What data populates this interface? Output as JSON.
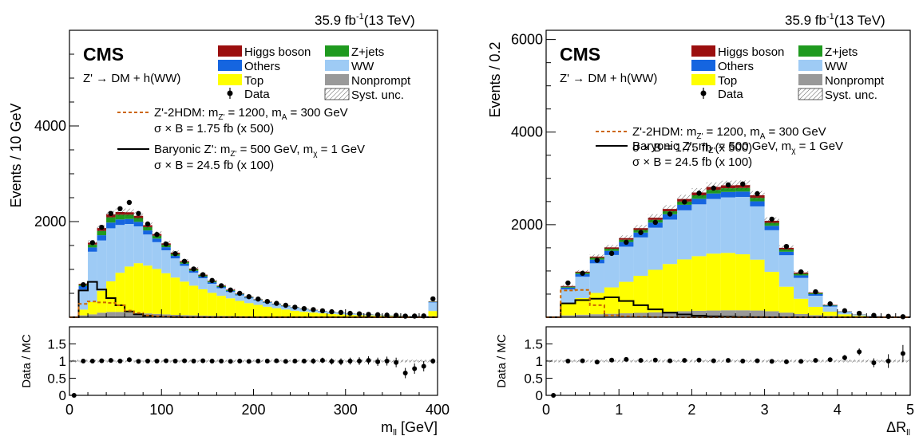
{
  "figure": {
    "cms_label": "CMS",
    "lumi": "35.9 fb",
    "lumi_sup": "-1",
    "energy": "(13 TeV)",
    "process": "Z' → DM + h(WW)",
    "colors": {
      "higgs": "#9b0f0f",
      "zjets": "#1f9a1f",
      "others": "#1565e0",
      "ww": "#9ecbf5",
      "top": "#ffff00",
      "nonprompt": "#999999",
      "zp2hdm": "#cc6600",
      "baryonic": "#000000"
    },
    "legend": {
      "higgs": "Higgs boson",
      "zjets": "Z+jets",
      "others": "Others",
      "ww": "WW",
      "top": "Top",
      "nonprompt": "Nonprompt",
      "data": "Data",
      "syst": "Syst. unc.",
      "sig1_line1_a": "Z'-2HDM: m",
      "sig1_sub1": "Z'",
      "sig1_line1_b": " = 1200, m",
      "sig1_sub2": "A",
      "sig1_line1_c": " = 300 GeV",
      "sig1_line2": "σ × B = 1.75 fb (x 500)",
      "sig2_line1_a": "Baryonic Z': m",
      "sig2_sub1": "Z'",
      "sig2_line1_b": " = 500 GeV, m",
      "sig2_sub2": "χ",
      "sig2_line1_c": " = 1 GeV",
      "sig2_line2": "σ × B = 24.5 fb (x 100)"
    }
  },
  "chart_data": [
    {
      "type": "bar",
      "stacked": true,
      "ylabel": "Events / 10 GeV",
      "xlabel": "m",
      "xlabel_sub": "ll",
      "xlabel_unit": " [GeV]",
      "ratio_ylabel": "Data / MC",
      "xlim": [
        0,
        400
      ],
      "ylim": [
        0,
        6000
      ],
      "xticks": [
        "0",
        "100",
        "200",
        "300",
        "400"
      ],
      "yticks": [
        "2000",
        "4000"
      ],
      "ratio_ylim": [
        0,
        2
      ],
      "ratio_yticks": [
        "0",
        "0.5",
        "1",
        "1.5"
      ],
      "bin_width": 10,
      "x": [
        5,
        15,
        25,
        35,
        45,
        55,
        65,
        75,
        85,
        95,
        105,
        115,
        125,
        135,
        145,
        155,
        165,
        175,
        185,
        195,
        205,
        215,
        225,
        235,
        245,
        255,
        265,
        275,
        285,
        295,
        305,
        315,
        325,
        335,
        345,
        355,
        365,
        375,
        385,
        395
      ],
      "series": [
        {
          "name": "Nonprompt",
          "values": [
            0,
            40,
            60,
            95,
            110,
            110,
            100,
            90,
            80,
            70,
            60,
            50,
            45,
            40,
            35,
            30,
            28,
            25,
            22,
            20,
            18,
            16,
            14,
            12,
            10,
            9,
            8,
            7,
            6,
            6,
            5,
            5,
            4,
            4,
            4,
            3,
            3,
            3,
            3,
            20
          ]
        },
        {
          "name": "Top",
          "values": [
            0,
            120,
            260,
            460,
            640,
            820,
            960,
            1040,
            1000,
            940,
            860,
            780,
            700,
            620,
            550,
            480,
            420,
            370,
            320,
            275,
            240,
            205,
            175,
            150,
            125,
            105,
            90,
            75,
            65,
            55,
            45,
            40,
            35,
            30,
            25,
            22,
            18,
            16,
            14,
            110
          ]
        },
        {
          "name": "WW",
          "values": [
            0,
            420,
            1050,
            1050,
            1110,
            1000,
            890,
            770,
            650,
            560,
            480,
            400,
            330,
            270,
            230,
            190,
            160,
            135,
            115,
            100,
            90,
            80,
            73,
            64,
            58,
            50,
            44,
            38,
            32,
            27,
            23,
            20,
            17,
            14,
            12,
            10,
            8,
            7,
            6,
            180
          ]
        },
        {
          "name": "Others",
          "values": [
            0,
            70,
            90,
            110,
            120,
            115,
            105,
            95,
            85,
            75,
            65,
            55,
            45,
            40,
            35,
            30,
            25,
            22,
            20,
            18,
            15,
            13,
            11,
            10,
            9,
            8,
            7,
            6,
            5,
            5,
            4,
            4,
            3,
            3,
            3,
            2,
            2,
            2,
            2,
            10
          ]
        },
        {
          "name": "Z+jets",
          "values": [
            0,
            30,
            60,
            90,
            110,
            100,
            90,
            80,
            70,
            60,
            50,
            40,
            35,
            30,
            25,
            20,
            17,
            15,
            12,
            10,
            9,
            8,
            7,
            6,
            5,
            4,
            4,
            3,
            3,
            3,
            2,
            2,
            2,
            2,
            1,
            1,
            1,
            1,
            1,
            5
          ]
        },
        {
          "name": "Higgs boson",
          "values": [
            0,
            20,
            40,
            60,
            60,
            55,
            50,
            45,
            40,
            35,
            30,
            25,
            20,
            18,
            15,
            12,
            10,
            9,
            8,
            7,
            6,
            5,
            5,
            4,
            4,
            3,
            3,
            3,
            2,
            2,
            2,
            2,
            2,
            1,
            1,
            1,
            1,
            1,
            1,
            5
          ]
        }
      ],
      "data": [
        0,
        680,
        1560,
        1880,
        2170,
        2270,
        2400,
        2170,
        1950,
        1730,
        1530,
        1330,
        1170,
        1010,
        890,
        770,
        660,
        570,
        500,
        430,
        380,
        330,
        290,
        250,
        210,
        180,
        160,
        135,
        115,
        100,
        82,
        72,
        60,
        52,
        44,
        40,
        24,
        25,
        28,
        385
      ],
      "signal_2hdm": [
        0,
        280,
        330,
        310,
        300,
        250,
        140,
        90,
        40,
        20,
        10,
        5,
        0,
        0,
        0,
        0,
        0,
        0,
        0,
        0,
        0,
        0,
        0,
        0,
        0,
        0,
        0,
        0,
        0,
        0,
        0,
        0,
        0,
        0,
        0,
        0,
        0,
        0,
        0,
        0
      ],
      "signal_baryonic": [
        0,
        560,
        740,
        580,
        400,
        250,
        120,
        60,
        30,
        15,
        8,
        4,
        0,
        0,
        0,
        0,
        0,
        0,
        0,
        0,
        0,
        0,
        0,
        0,
        0,
        0,
        0,
        0,
        0,
        0,
        0,
        0,
        0,
        0,
        0,
        0,
        0,
        0,
        0,
        0
      ],
      "ratio": [
        0,
        1.0,
        1.0,
        1.01,
        1.02,
        1.0,
        1.04,
        0.99,
        1.0,
        1.0,
        1.01,
        1.0,
        1.01,
        1.0,
        1.01,
        1.0,
        1.0,
        0.99,
        1.0,
        0.99,
        1.0,
        1.0,
        1.01,
        0.99,
        1.0,
        1.0,
        1.0,
        1.02,
        0.99,
        0.98,
        1.0,
        1.0,
        1.02,
        0.98,
        1.0,
        0.96,
        0.65,
        0.78,
        0.85,
        1.0
      ],
      "ratio_err": [
        0,
        0.04,
        0.03,
        0.03,
        0.03,
        0.03,
        0.03,
        0.03,
        0.03,
        0.03,
        0.03,
        0.03,
        0.03,
        0.03,
        0.03,
        0.04,
        0.04,
        0.04,
        0.05,
        0.05,
        0.05,
        0.05,
        0.06,
        0.06,
        0.07,
        0.07,
        0.08,
        0.08,
        0.09,
        0.1,
        0.1,
        0.11,
        0.12,
        0.12,
        0.13,
        0.14,
        0.15,
        0.15,
        0.15,
        0.08
      ]
    },
    {
      "type": "bar",
      "stacked": true,
      "ylabel": "Events / 0.2",
      "xlabel": "ΔR",
      "xlabel_sub": "ll",
      "xlabel_unit": "",
      "ratio_ylabel": "Data / MC",
      "xlim": [
        0,
        5
      ],
      "ylim": [
        0,
        6200
      ],
      "xticks": [
        "0",
        "1",
        "2",
        "3",
        "4",
        "5"
      ],
      "yticks": [
        "2000",
        "4000",
        "6000"
      ],
      "ratio_ylim": [
        0,
        2
      ],
      "ratio_yticks": [
        "0",
        "0.5",
        "1",
        "1.5"
      ],
      "bin_width": 0.2,
      "x": [
        0.1,
        0.3,
        0.5,
        0.7,
        0.9,
        1.1,
        1.3,
        1.5,
        1.7,
        1.9,
        2.1,
        2.3,
        2.5,
        2.7,
        2.9,
        3.1,
        3.3,
        3.5,
        3.7,
        3.9,
        4.1,
        4.3,
        4.5,
        4.7,
        4.9
      ],
      "series": [
        {
          "name": "Nonprompt",
          "values": [
            0,
            40,
            55,
            65,
            75,
            85,
            95,
            105,
            120,
            130,
            140,
            145,
            150,
            150,
            145,
            130,
            100,
            70,
            45,
            30,
            18,
            10,
            6,
            3,
            2
          ]
        },
        {
          "name": "Top",
          "values": [
            0,
            260,
            360,
            460,
            570,
            680,
            800,
            920,
            1030,
            1120,
            1180,
            1230,
            1240,
            1210,
            1100,
            850,
            560,
            330,
            180,
            90,
            45,
            22,
            10,
            5,
            3
          ]
        },
        {
          "name": "WW",
          "values": [
            0,
            300,
            460,
            640,
            700,
            760,
            830,
            910,
            960,
            1060,
            1120,
            1180,
            1200,
            1240,
            1150,
            900,
            680,
            450,
            240,
            110,
            45,
            20,
            8,
            4,
            2
          ]
        },
        {
          "name": "Others",
          "values": [
            0,
            40,
            60,
            80,
            90,
            100,
            105,
            110,
            115,
            120,
            120,
            120,
            118,
            115,
            110,
            95,
            75,
            55,
            35,
            20,
            10,
            5,
            3,
            2,
            1
          ]
        },
        {
          "name": "Z+jets",
          "values": [
            0,
            20,
            30,
            40,
            45,
            50,
            55,
            60,
            65,
            70,
            75,
            78,
            80,
            80,
            75,
            65,
            50,
            35,
            20,
            10,
            5,
            2,
            1,
            1,
            0
          ]
        },
        {
          "name": "Higgs boson",
          "values": [
            0,
            15,
            20,
            25,
            30,
            35,
            40,
            45,
            50,
            55,
            60,
            62,
            62,
            60,
            55,
            45,
            35,
            25,
            15,
            8,
            4,
            2,
            1,
            1,
            0
          ]
        }
      ],
      "data": [
        0,
        740,
        950,
        1230,
        1380,
        1620,
        1830,
        2050,
        2230,
        2490,
        2680,
        2790,
        2860,
        2880,
        2670,
        2120,
        1530,
        980,
        550,
        290,
        140,
        85,
        40,
        20,
        12
      ],
      "signal_2hdm": [
        0,
        580,
        590,
        260,
        40,
        20,
        8,
        4,
        0,
        0,
        0,
        0,
        0,
        0,
        0,
        0,
        0,
        0,
        0,
        0,
        0,
        0,
        0,
        0,
        0
      ],
      "signal_baryonic": [
        0,
        300,
        370,
        400,
        430,
        350,
        260,
        170,
        100,
        60,
        35,
        20,
        10,
        5,
        2,
        0,
        0,
        0,
        0,
        0,
        0,
        0,
        0,
        0,
        0
      ],
      "ratio": [
        0,
        1.0,
        1.01,
        0.97,
        1.03,
        1.05,
        1.02,
        1.03,
        1.01,
        1.02,
        1.03,
        1.01,
        1.02,
        1.0,
        1.01,
        0.99,
        0.98,
        0.99,
        1.02,
        1.04,
        1.1,
        1.27,
        0.95,
        1.0,
        1.22
      ],
      "ratio_err": [
        0,
        0.04,
        0.03,
        0.03,
        0.03,
        0.03,
        0.03,
        0.03,
        0.03,
        0.03,
        0.03,
        0.03,
        0.03,
        0.03,
        0.03,
        0.03,
        0.03,
        0.04,
        0.04,
        0.06,
        0.08,
        0.1,
        0.13,
        0.2,
        0.25
      ]
    }
  ]
}
